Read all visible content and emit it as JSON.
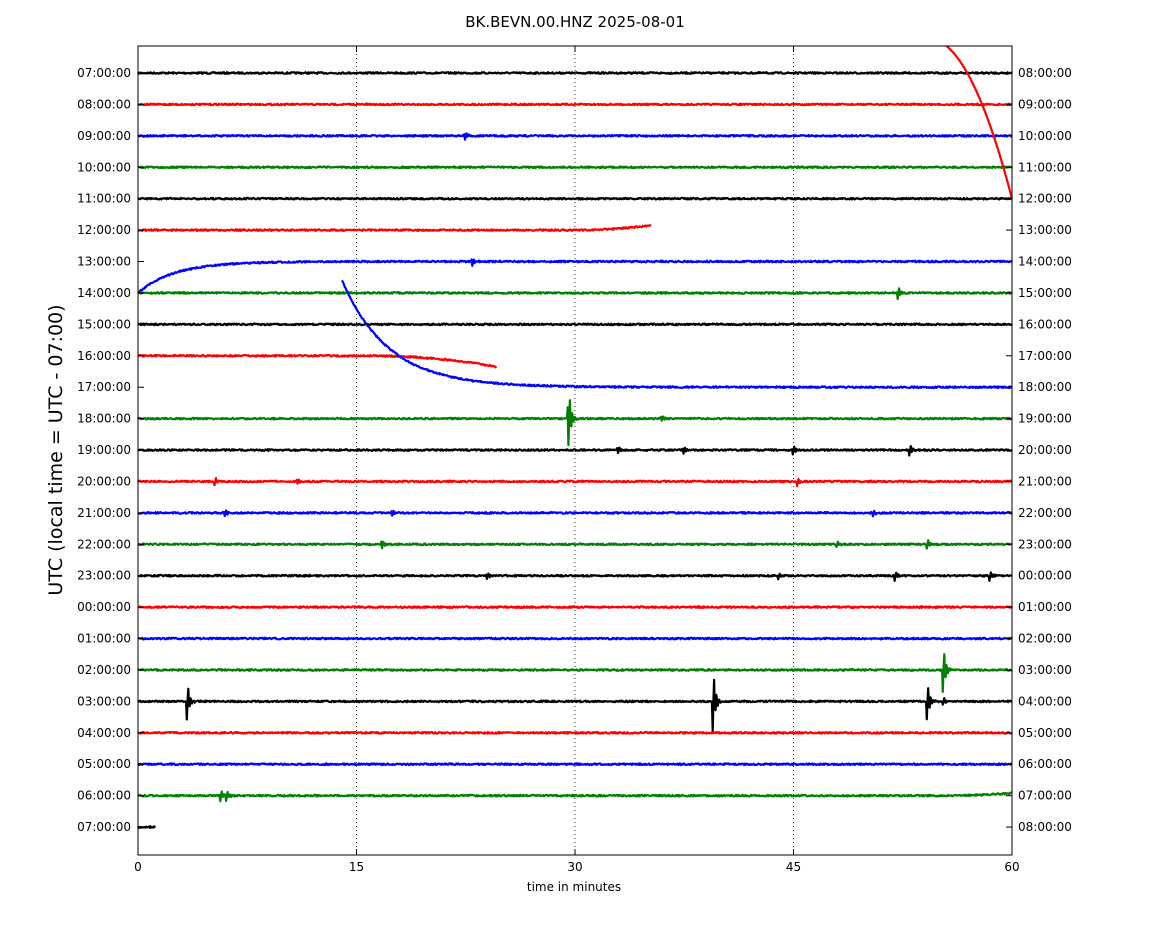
{
  "chart_data": {
    "type": "line",
    "title": "BK.BEVN.00.HNZ 2025-08-01",
    "xlabel": "time in minutes",
    "ylabel": "UTC (local time = UTC - 07:00)",
    "xlim": [
      0,
      60
    ],
    "xticks": [
      0,
      15,
      30,
      45,
      60
    ],
    "grid": "vertical dotted lines at 15, 30, 45",
    "left_tick_labels": [
      "07:00:00",
      "08:00:00",
      "09:00:00",
      "10:00:00",
      "11:00:00",
      "12:00:00",
      "13:00:00",
      "14:00:00",
      "15:00:00",
      "16:00:00",
      "17:00:00",
      "18:00:00",
      "19:00:00",
      "20:00:00",
      "21:00:00",
      "22:00:00",
      "23:00:00",
      "00:00:00",
      "01:00:00",
      "02:00:00",
      "03:00:00",
      "04:00:00",
      "05:00:00",
      "06:00:00",
      "07:00:00"
    ],
    "right_tick_labels": [
      "08:00:00",
      "09:00:00",
      "10:00:00",
      "11:00:00",
      "12:00:00",
      "13:00:00",
      "14:00:00",
      "15:00:00",
      "16:00:00",
      "17:00:00",
      "18:00:00",
      "19:00:00",
      "20:00:00",
      "21:00:00",
      "22:00:00",
      "23:00:00",
      "00:00:00",
      "01:00:00",
      "02:00:00",
      "03:00:00",
      "04:00:00",
      "05:00:00",
      "06:00:00",
      "07:00:00",
      "08:00:00"
    ],
    "color_cycle": [
      "#000000",
      "#ff0000",
      "#0000ff",
      "#008000"
    ],
    "rows": [
      {
        "label": "07:00:00",
        "color": "#000000",
        "start": 0,
        "end": 60
      },
      {
        "label": "08:00:00",
        "color": "#ff0000",
        "start": 0,
        "end": 60
      },
      {
        "label": "09:00:00",
        "color": "#0000ff",
        "start": 0,
        "end": 60,
        "events": [
          {
            "t": 22.5,
            "amp": 0.2
          }
        ]
      },
      {
        "label": "10:00:00",
        "color": "#008000",
        "start": 0,
        "end": 60
      },
      {
        "label": "11:00:00",
        "color": "#000000",
        "start": 0,
        "end": 60
      },
      {
        "label": "12:00:00",
        "color": "#ff0000",
        "start": 0,
        "end": 35.2,
        "drift": {
          "t0": 30,
          "t1": 35.2,
          "dy": 0.15
        }
      },
      {
        "label": "13:00:00",
        "color": "#0000ff",
        "start": 0,
        "end": 60,
        "decay": {
          "t0": 0,
          "dy": -1,
          "tau": 2.5
        },
        "events": [
          {
            "t": 23,
            "amp": 0.2
          }
        ]
      },
      {
        "label": "14:00:00",
        "color": "#008000",
        "start": 0,
        "end": 60,
        "events": [
          {
            "t": 52.2,
            "amp": 0.3
          }
        ]
      },
      {
        "label": "15:00:00",
        "color": "#000000",
        "start": 0,
        "end": 60
      },
      {
        "label": "16:00:00",
        "color": "#ff0000",
        "start": 0,
        "end": 24.6,
        "drift": {
          "t0": 16,
          "t1": 24.6,
          "dy": -0.35
        }
      },
      {
        "label": "17:00:00",
        "color": "#0000ff",
        "start": 14,
        "end": 60,
        "decay": {
          "t0": 14,
          "dy": 3.4,
          "tau": 3.2
        }
      },
      {
        "label": "18:00:00",
        "color": "#008000",
        "start": 0,
        "end": 60,
        "events": [
          {
            "t": 29.6,
            "amp": 1.4
          },
          {
            "t": 36,
            "amp": 0.15
          }
        ]
      },
      {
        "label": "19:00:00",
        "color": "#000000",
        "start": 0,
        "end": 60,
        "events": [
          {
            "t": 33,
            "amp": 0.2
          },
          {
            "t": 37.5,
            "amp": 0.2
          },
          {
            "t": 45,
            "amp": 0.25
          },
          {
            "t": 53,
            "amp": 0.3
          }
        ]
      },
      {
        "label": "20:00:00",
        "color": "#ff0000",
        "start": 0,
        "end": 60,
        "events": [
          {
            "t": 5.3,
            "amp": 0.2
          },
          {
            "t": 11,
            "amp": 0.15
          },
          {
            "t": 45.3,
            "amp": 0.25
          }
        ]
      },
      {
        "label": "21:00:00",
        "color": "#0000ff",
        "start": 0,
        "end": 60,
        "events": [
          {
            "t": 6,
            "amp": 0.15
          },
          {
            "t": 17.5,
            "amp": 0.15
          },
          {
            "t": 50.5,
            "amp": 0.15
          }
        ]
      },
      {
        "label": "22:00:00",
        "color": "#008000",
        "start": 0,
        "end": 60,
        "events": [
          {
            "t": 16.8,
            "amp": 0.25
          },
          {
            "t": 48,
            "amp": 0.15
          },
          {
            "t": 54.2,
            "amp": 0.25
          }
        ]
      },
      {
        "label": "23:00:00",
        "color": "#000000",
        "start": 0,
        "end": 60,
        "events": [
          {
            "t": 24,
            "amp": 0.2
          },
          {
            "t": 44,
            "amp": 0.2
          },
          {
            "t": 52,
            "amp": 0.25
          },
          {
            "t": 58.5,
            "amp": 0.25
          }
        ]
      },
      {
        "label": "00:00:00",
        "color": "#ff0000",
        "start": 0,
        "end": 60
      },
      {
        "label": "01:00:00",
        "color": "#0000ff",
        "start": 0,
        "end": 60
      },
      {
        "label": "02:00:00",
        "color": "#008000",
        "start": 0,
        "end": 60,
        "events": [
          {
            "t": 55.3,
            "amp": 1.2
          }
        ]
      },
      {
        "label": "03:00:00",
        "color": "#000000",
        "start": 0,
        "end": 60,
        "events": [
          {
            "t": 3.4,
            "amp": 1.0
          },
          {
            "t": 39.5,
            "amp": 1.6
          },
          {
            "t": 54.2,
            "amp": 1.0
          },
          {
            "t": 55.3,
            "amp": 0.2
          }
        ]
      },
      {
        "label": "04:00:00",
        "color": "#ff0000",
        "start": 0,
        "end": 60
      },
      {
        "label": "05:00:00",
        "color": "#0000ff",
        "start": 0,
        "end": 60
      },
      {
        "label": "06:00:00",
        "color": "#008000",
        "start": 0,
        "end": 60,
        "events": [
          {
            "t": 5.7,
            "amp": 0.3
          },
          {
            "t": 6.1,
            "amp": 0.25
          }
        ],
        "drift": {
          "t0": 55,
          "t1": 60,
          "dy": 0.08
        }
      },
      {
        "label": "07:00:00",
        "color": "#000000",
        "start": 0,
        "end": 1.2
      }
    ],
    "row_offsets": {
      "0": {
        "start_dy": -0.05
      },
      "0_curve": {
        "color": "#ff0000",
        "from_row": -1,
        "t0": 55.5,
        "t1": 60,
        "note": "tail of previous hour trace descending into row 4"
      }
    }
  }
}
